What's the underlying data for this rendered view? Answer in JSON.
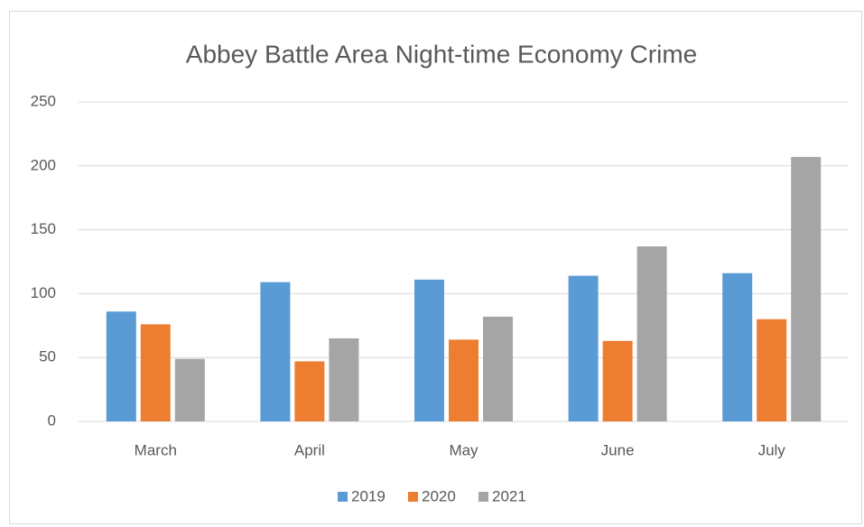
{
  "chart_data": {
    "type": "bar",
    "title": "Abbey Battle Area Night-time Economy Crime",
    "categories": [
      "March",
      "April",
      "May",
      "June",
      "July"
    ],
    "series": [
      {
        "name": "2019",
        "color": "#5b9bd5",
        "values": [
          86,
          109,
          111,
          114,
          116
        ]
      },
      {
        "name": "2020",
        "color": "#ed7d31",
        "values": [
          76,
          47,
          64,
          63,
          80
        ]
      },
      {
        "name": "2021",
        "color": "#a5a5a5",
        "values": [
          49,
          65,
          82,
          137,
          207
        ]
      }
    ],
    "ylim": [
      0,
      250
    ],
    "yticks": [
      0,
      50,
      100,
      150,
      200,
      250
    ],
    "grid": true,
    "legend": "bottom"
  }
}
